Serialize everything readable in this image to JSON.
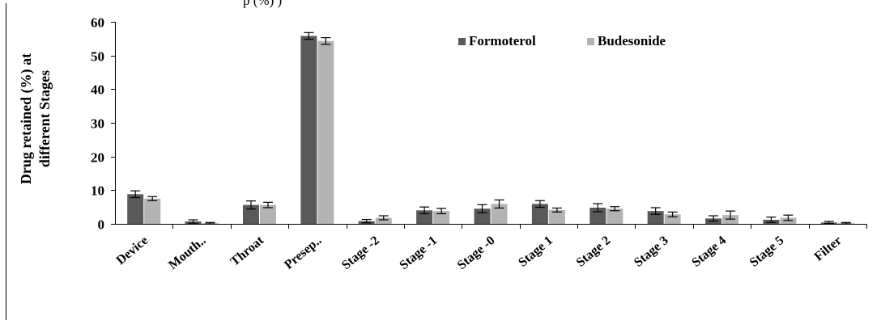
{
  "chart_data": {
    "type": "bar",
    "caption_fragment": "p         (%)                 )",
    "ylabel_line1": "Drug retained (%) at",
    "ylabel_line2": "different Stages",
    "ylim": [
      0,
      60
    ],
    "yticks": [
      0,
      10,
      20,
      30,
      40,
      50,
      60
    ],
    "grid": false,
    "legend_position": "top-right",
    "categories": [
      "Device",
      "Mouth..",
      "Throat",
      "Presep..",
      "Stage -2",
      "Stage -1",
      "Stage -0",
      "Stage 1",
      "Stage 2",
      "Stage 3",
      "Stage 4",
      "Stage 5",
      "Filter"
    ],
    "series": [
      {
        "name": "Formoterol",
        "color": "#595959",
        "values": [
          8.8,
          0.7,
          5.6,
          55.8,
          0.8,
          4.0,
          4.5,
          5.9,
          4.8,
          3.8,
          1.6,
          1.2,
          0.4
        ],
        "errors": [
          1.0,
          0.5,
          1.2,
          1.0,
          0.5,
          1.0,
          1.2,
          1.0,
          1.2,
          1.0,
          0.8,
          0.8,
          0.3
        ]
      },
      {
        "name": "Budesonide",
        "color": "#b3b3b3",
        "values": [
          7.5,
          0.2,
          5.6,
          54.3,
          1.8,
          3.8,
          5.9,
          4.1,
          4.5,
          2.8,
          2.6,
          1.8,
          0.2
        ],
        "errors": [
          0.6,
          0.2,
          0.8,
          1.0,
          0.6,
          0.8,
          1.2,
          0.6,
          0.6,
          0.7,
          1.2,
          0.8,
          0.2
        ]
      }
    ]
  }
}
